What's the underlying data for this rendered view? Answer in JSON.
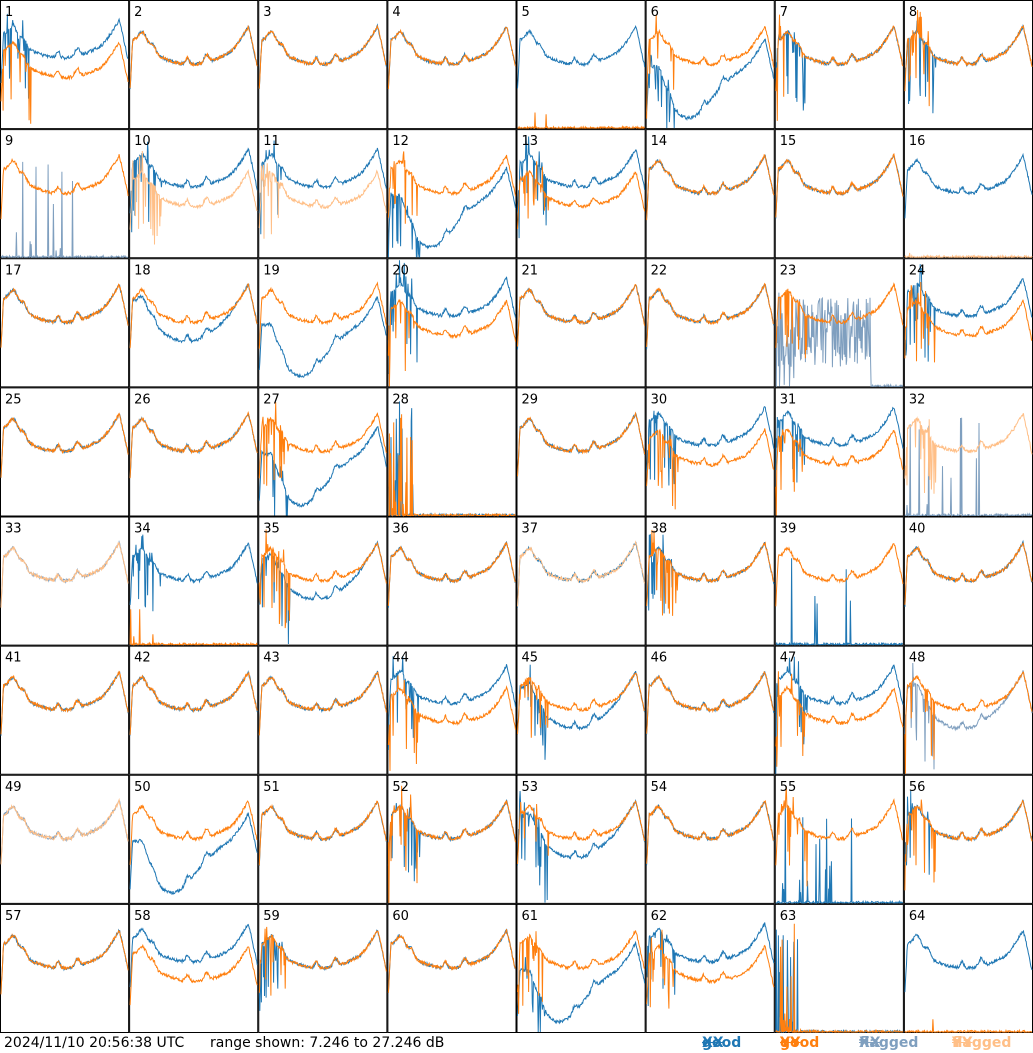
{
  "chart_data": {
    "type": "line",
    "title": "",
    "timestamp": "2024/11/10 20:56:38 UTC",
    "range_label": "range shown: 7.246 to 27.246 dB",
    "y_range_db": [
      7.246,
      27.246
    ],
    "grid": {
      "rows": 8,
      "cols": 8
    },
    "series_styles": [
      {
        "key": "good_xx",
        "label": "good",
        "symbol": "XX",
        "color": "#1f77b4"
      },
      {
        "key": "good_yy",
        "label": "good",
        "symbol": "YY",
        "color": "#ff7f0e"
      },
      {
        "key": "flagged_xx",
        "label": "flagged",
        "symbol": "XX",
        "color": "#7f9fbf"
      },
      {
        "key": "flagged_yy",
        "label": "flagged",
        "symbol": "YY",
        "color": "#ffbf87"
      }
    ],
    "panels": [
      {
        "id": "1",
        "xx": "good",
        "yy": "good",
        "pattern": "xhigh",
        "spiky": true
      },
      {
        "id": "2",
        "xx": "good",
        "yy": "good",
        "pattern": "normal"
      },
      {
        "id": "3",
        "xx": "good",
        "yy": "good",
        "pattern": "normal"
      },
      {
        "id": "4",
        "xx": "good",
        "yy": "good",
        "pattern": "normal"
      },
      {
        "id": "5",
        "xx": "good",
        "yy": "good",
        "pattern": "yyzero"
      },
      {
        "id": "6",
        "xx": "good",
        "yy": "good",
        "pattern": "xxdip",
        "spiky": true
      },
      {
        "id": "7",
        "xx": "good",
        "yy": "good",
        "pattern": "normal",
        "spiky": true
      },
      {
        "id": "8",
        "xx": "good",
        "yy": "good",
        "pattern": "normal",
        "spiky": true
      },
      {
        "id": "9",
        "xx": "flagged",
        "yy": "good",
        "pattern": "xxzero"
      },
      {
        "id": "10",
        "xx": "good",
        "yy": "flagged",
        "pattern": "xhigh",
        "spiky": true
      },
      {
        "id": "11",
        "xx": "good",
        "yy": "flagged",
        "pattern": "xhigh",
        "spiky": true
      },
      {
        "id": "12",
        "xx": "good",
        "yy": "good",
        "pattern": "xxdip",
        "spiky": true
      },
      {
        "id": "13",
        "xx": "good",
        "yy": "good",
        "pattern": "xhigh",
        "spiky": true
      },
      {
        "id": "14",
        "xx": "good",
        "yy": "good",
        "pattern": "normal"
      },
      {
        "id": "15",
        "xx": "good",
        "yy": "good",
        "pattern": "normal"
      },
      {
        "id": "16",
        "xx": "good",
        "yy": "flagged",
        "pattern": "yyzero"
      },
      {
        "id": "17",
        "xx": "good",
        "yy": "good",
        "pattern": "normal"
      },
      {
        "id": "18",
        "xx": "good",
        "yy": "good",
        "pattern": "xlow"
      },
      {
        "id": "19",
        "xx": "good",
        "yy": "good",
        "pattern": "xxdip"
      },
      {
        "id": "20",
        "xx": "good",
        "yy": "good",
        "pattern": "xhigh",
        "spiky": true
      },
      {
        "id": "21",
        "xx": "good",
        "yy": "good",
        "pattern": "normal"
      },
      {
        "id": "22",
        "xx": "good",
        "yy": "good",
        "pattern": "normal"
      },
      {
        "id": "23",
        "xx": "flagged",
        "yy": "good",
        "pattern": "xxnoise",
        "spiky": true
      },
      {
        "id": "24",
        "xx": "good",
        "yy": "good",
        "pattern": "xhigh",
        "spiky": true
      },
      {
        "id": "25",
        "xx": "good",
        "yy": "good",
        "pattern": "normal"
      },
      {
        "id": "26",
        "xx": "good",
        "yy": "good",
        "pattern": "normal"
      },
      {
        "id": "27",
        "xx": "good",
        "yy": "good",
        "pattern": "xxdip",
        "spiky": true
      },
      {
        "id": "28",
        "xx": "good",
        "yy": "good",
        "pattern": "dead"
      },
      {
        "id": "29",
        "xx": "good",
        "yy": "good",
        "pattern": "normal"
      },
      {
        "id": "30",
        "xx": "good",
        "yy": "good",
        "pattern": "xhigh",
        "spiky": true
      },
      {
        "id": "31",
        "xx": "good",
        "yy": "good",
        "pattern": "xhigh",
        "spiky": true
      },
      {
        "id": "32",
        "xx": "flagged",
        "yy": "flagged",
        "pattern": "xxzero",
        "spiky": true
      },
      {
        "id": "33",
        "xx": "flagged",
        "yy": "flagged",
        "pattern": "normal"
      },
      {
        "id": "34",
        "xx": "good",
        "yy": "good",
        "pattern": "yyzero",
        "spiky": true
      },
      {
        "id": "35",
        "xx": "good",
        "yy": "good",
        "pattern": "xlow",
        "spiky": true
      },
      {
        "id": "36",
        "xx": "good",
        "yy": "good",
        "pattern": "normal"
      },
      {
        "id": "37",
        "xx": "good",
        "yy": "flagged",
        "pattern": "normal"
      },
      {
        "id": "38",
        "xx": "good",
        "yy": "good",
        "pattern": "normal",
        "spiky": true
      },
      {
        "id": "39",
        "xx": "good",
        "yy": "good",
        "pattern": "xxzero"
      },
      {
        "id": "40",
        "xx": "good",
        "yy": "good",
        "pattern": "normal"
      },
      {
        "id": "41",
        "xx": "good",
        "yy": "good",
        "pattern": "normal"
      },
      {
        "id": "42",
        "xx": "good",
        "yy": "good",
        "pattern": "normal"
      },
      {
        "id": "43",
        "xx": "good",
        "yy": "good",
        "pattern": "normal"
      },
      {
        "id": "44",
        "xx": "good",
        "yy": "good",
        "pattern": "xhigh",
        "spiky": true
      },
      {
        "id": "45",
        "xx": "good",
        "yy": "good",
        "pattern": "xlow",
        "spiky": true
      },
      {
        "id": "46",
        "xx": "good",
        "yy": "good",
        "pattern": "normal"
      },
      {
        "id": "47",
        "xx": "good",
        "yy": "good",
        "pattern": "xhigh",
        "spiky": true
      },
      {
        "id": "48",
        "xx": "flagged",
        "yy": "good",
        "pattern": "xlow",
        "spiky": true
      },
      {
        "id": "49",
        "xx": "flagged",
        "yy": "flagged",
        "pattern": "normal"
      },
      {
        "id": "50",
        "xx": "good",
        "yy": "good",
        "pattern": "xxdip"
      },
      {
        "id": "51",
        "xx": "good",
        "yy": "good",
        "pattern": "normal"
      },
      {
        "id": "52",
        "xx": "good",
        "yy": "good",
        "pattern": "normal",
        "spiky": true
      },
      {
        "id": "53",
        "xx": "good",
        "yy": "good",
        "pattern": "xlow",
        "spiky": true
      },
      {
        "id": "54",
        "xx": "good",
        "yy": "good",
        "pattern": "normal"
      },
      {
        "id": "55",
        "xx": "good",
        "yy": "good",
        "pattern": "xxzero",
        "spiky": true
      },
      {
        "id": "56",
        "xx": "good",
        "yy": "good",
        "pattern": "normal",
        "spiky": true
      },
      {
        "id": "57",
        "xx": "good",
        "yy": "good",
        "pattern": "normal"
      },
      {
        "id": "58",
        "xx": "good",
        "yy": "good",
        "pattern": "xhigh"
      },
      {
        "id": "59",
        "xx": "good",
        "yy": "good",
        "pattern": "normal",
        "spiky": true
      },
      {
        "id": "60",
        "xx": "good",
        "yy": "good",
        "pattern": "normal"
      },
      {
        "id": "61",
        "xx": "good",
        "yy": "good",
        "pattern": "xxdip",
        "spiky": true
      },
      {
        "id": "62",
        "xx": "good",
        "yy": "good",
        "pattern": "xhigh",
        "spiky": true
      },
      {
        "id": "63",
        "xx": "good",
        "yy": "good",
        "pattern": "dead"
      },
      {
        "id": "64",
        "xx": "good",
        "yy": "good",
        "pattern": "yyzero"
      }
    ]
  }
}
